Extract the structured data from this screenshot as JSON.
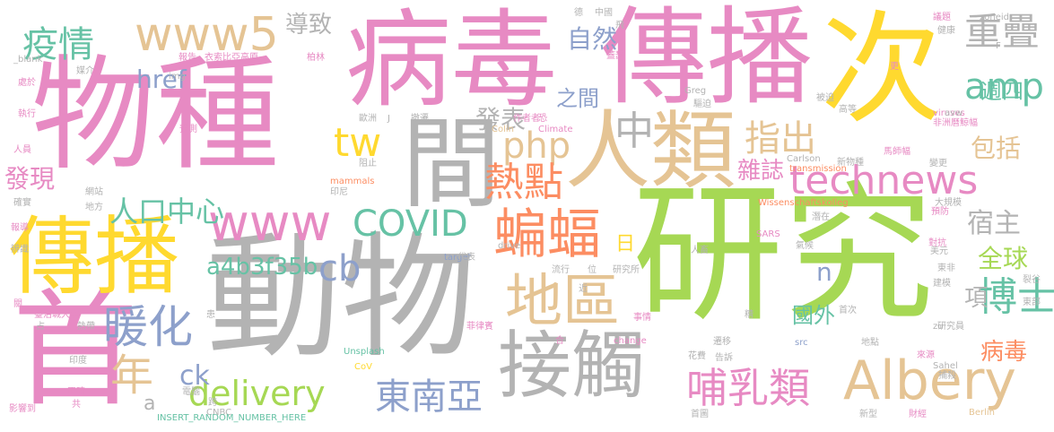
{
  "words": [
    {
      "text": "研究",
      "color": "#a6d854"
    },
    {
      "text": "動物",
      "color": "#b3b3b3"
    },
    {
      "text": "物種",
      "color": "#e78ac3"
    },
    {
      "text": "病毒",
      "color": "#e78ac3"
    },
    {
      "text": "傳播",
      "color": "#e78ac3"
    },
    {
      "text": "次",
      "color": "#ffd92f"
    },
    {
      "text": "人類",
      "color": "#e5c494"
    },
    {
      "text": "首",
      "color": "#e78ac3"
    },
    {
      "text": "傳播",
      "color": "#ffd92f"
    },
    {
      "text": "間",
      "color": "#b3b3b3"
    },
    {
      "text": "接觸",
      "color": "#b3b3b3"
    },
    {
      "text": "Albery",
      "color": "#e5c494"
    },
    {
      "text": "technews",
      "color": "#e78ac3"
    },
    {
      "text": "www",
      "color": "#e78ac3"
    },
    {
      "text": "www5",
      "color": "#e5c494"
    },
    {
      "text": "蝙蝠",
      "color": "#fc8d62"
    },
    {
      "text": "地區",
      "color": "#e5c494"
    },
    {
      "text": "COVID",
      "color": "#66c2a5"
    },
    {
      "text": "東南亞",
      "color": "#8da0cb"
    },
    {
      "text": "哺乳類",
      "color": "#e78ac3"
    },
    {
      "text": "delivery",
      "color": "#a6d854"
    },
    {
      "text": "暖化",
      "color": "#8da0cb"
    },
    {
      "text": "疫情",
      "color": "#66c2a5"
    },
    {
      "text": "tw",
      "color": "#ffd92f"
    },
    {
      "text": "php",
      "color": "#e5c494"
    },
    {
      "text": "amp",
      "color": "#66c2a5"
    },
    {
      "text": "重疊",
      "color": "#b3b3b3"
    },
    {
      "text": "指出",
      "color": "#e5c494"
    },
    {
      "text": "熱點",
      "color": "#fc8d62"
    },
    {
      "text": "中",
      "color": "#b3b3b3"
    },
    {
      "text": "cb",
      "color": "#8da0cb"
    },
    {
      "text": "人口中心",
      "color": "#66c2a5"
    },
    {
      "text": "博士",
      "color": "#66c2a5"
    },
    {
      "text": "年",
      "color": "#e5c494"
    },
    {
      "text": "a4b3f35b",
      "color": "#66c2a5"
    },
    {
      "text": "全球",
      "color": "#a6d854"
    },
    {
      "text": "ck",
      "color": "#8da0cb"
    },
    {
      "text": "自然",
      "color": "#8da0cb"
    },
    {
      "text": "導致",
      "color": "#b3b3b3"
    },
    {
      "text": "href",
      "color": "#8da0cb"
    },
    {
      "text": "發表",
      "color": "#b3b3b3"
    },
    {
      "text": "之間",
      "color": "#8da0cb"
    },
    {
      "text": "發現",
      "color": "#e78ac3"
    },
    {
      "text": "包括",
      "color": "#e5c494"
    },
    {
      "text": "雜誌",
      "color": "#e78ac3"
    },
    {
      "text": "宿主",
      "color": "#b3b3b3"
    },
    {
      "text": "國外",
      "color": "#66c2a5"
    },
    {
      "text": "病毒",
      "color": "#fc8d62"
    },
    {
      "text": "週四",
      "color": "#66c2a5"
    },
    {
      "text": "日",
      "color": "#ffd92f"
    },
    {
      "text": "n",
      "color": "#8da0cb"
    },
    {
      "text": "項",
      "color": "#b3b3b3"
    },
    {
      "text": "a",
      "color": "#b3b3b3"
    },
    {
      "text": "臺治城大學",
      "color": "#e78ac3"
    },
    {
      "text": "熱帶",
      "color": "#b3b3b3"
    },
    {
      "text": "印度",
      "color": "#b3b3b3"
    },
    {
      "text": "CNBC",
      "color": "#b3b3b3"
    },
    {
      "text": "INSERT_RANDOM_NUMBER_HERE",
      "color": "#66c2a5"
    },
    {
      "text": "Unsplash",
      "color": "#66c2a5"
    },
    {
      "text": "CoV",
      "color": "#ffd92f"
    },
    {
      "text": "菲律賓",
      "color": "#e78ac3"
    },
    {
      "text": "change",
      "color": "#e78ac3"
    },
    {
      "text": "SARS",
      "color": "#e78ac3"
    },
    {
      "text": "Wissenschaftskolleg",
      "color": "#fc8d62"
    },
    {
      "text": "Carlson",
      "color": "#b3b3b3"
    },
    {
      "text": "transmission",
      "color": "#fc8d62"
    },
    {
      "text": "Greg",
      "color": "#b3b3b3"
    },
    {
      "text": "viruses",
      "color": "#e78ac3"
    },
    {
      "text": "avw",
      "color": "#b3b3b3"
    },
    {
      "text": "Berlin",
      "color": "#e5c494"
    },
    {
      "text": "Sahel",
      "color": "#b3b3b3"
    },
    {
      "text": "mammals",
      "color": "#fc8d62"
    },
    {
      "text": "Colin",
      "color": "#e5c494"
    },
    {
      "text": "Climate",
      "color": "#e78ac3"
    },
    {
      "text": "drive",
      "color": "#b3b3b3"
    },
    {
      "text": "target",
      "color": "#8da0cb"
    },
    {
      "text": "src",
      "color": "#8da0cb"
    },
    {
      "text": "zu",
      "color": "#b3b3b3"
    },
    {
      "text": "zoneid",
      "color": "#b3b3b3"
    },
    {
      "text": "_blank",
      "color": "#b3b3b3"
    },
    {
      "text": "img",
      "color": "#b3b3b3"
    },
    {
      "text": "衣索比亞高原",
      "color": "#e78ac3"
    },
    {
      "text": "報告",
      "color": "#e78ac3"
    },
    {
      "text": "柏林",
      "color": "#e78ac3"
    },
    {
      "text": "媒介",
      "color": "#b3b3b3"
    },
    {
      "text": "處於",
      "color": "#e78ac3"
    },
    {
      "text": "執行",
      "color": "#e78ac3"
    },
    {
      "text": "預測",
      "color": "#e78ac3"
    },
    {
      "text": "人員",
      "color": "#e78ac3"
    },
    {
      "text": "網站",
      "color": "#b3b3b3"
    },
    {
      "text": "確實",
      "color": "#b3b3b3"
    },
    {
      "text": "地方",
      "color": "#b3b3b3"
    },
    {
      "text": "報導",
      "color": "#e78ac3"
    },
    {
      "text": "辨識",
      "color": "#b3b3b3"
    },
    {
      "text": "關",
      "color": "#e78ac3"
    },
    {
      "text": "占",
      "color": "#b3b3b3"
    },
    {
      "text": "正確",
      "color": "#e78ac3"
    },
    {
      "text": "共",
      "color": "#e78ac3"
    },
    {
      "text": "影響到",
      "color": "#e78ac3"
    },
    {
      "text": "電腦",
      "color": "#b3b3b3"
    },
    {
      "text": "跨",
      "color": "#b3b3b3"
    },
    {
      "text": "歐洲",
      "color": "#b3b3b3"
    },
    {
      "text": "撤遷",
      "color": "#b3b3b3"
    },
    {
      "text": "作者者",
      "color": "#e78ac3"
    },
    {
      "text": "恐",
      "color": "#e78ac3"
    },
    {
      "text": "阻止",
      "color": "#b3b3b3"
    },
    {
      "text": "印尼",
      "color": "#b3b3b3"
    },
    {
      "text": "代表",
      "color": "#b3b3b3"
    },
    {
      "text": "流行",
      "color": "#b3b3b3"
    },
    {
      "text": "位",
      "color": "#b3b3b3"
    },
    {
      "text": "研究所",
      "color": "#b3b3b3"
    },
    {
      "text": "近",
      "color": "#b3b3b3"
    },
    {
      "text": "事情",
      "color": "#e78ac3"
    },
    {
      "text": "合",
      "color": "#e78ac3"
    },
    {
      "text": "花費",
      "color": "#b3b3b3"
    },
    {
      "text": "告訴",
      "color": "#b3b3b3"
    },
    {
      "text": "來源",
      "color": "#e78ac3"
    },
    {
      "text": "捕殺",
      "color": "#b3b3b3"
    },
    {
      "text": "首圖",
      "color": "#b3b3b3"
    },
    {
      "text": "新型",
      "color": "#b3b3b3"
    },
    {
      "text": "財經",
      "color": "#e78ac3"
    },
    {
      "text": "首次",
      "color": "#b3b3b3"
    },
    {
      "text": "地點",
      "color": "#b3b3b3"
    },
    {
      "text": "研究員",
      "color": "#b3b3b3"
    },
    {
      "text": "遷移",
      "color": "#b3b3b3"
    },
    {
      "text": "糟",
      "color": "#b3b3b3"
    },
    {
      "text": "患",
      "color": "#b3b3b3"
    },
    {
      "text": "東部",
      "color": "#b3b3b3"
    },
    {
      "text": "裂谷",
      "color": "#b3b3b3"
    },
    {
      "text": "建模",
      "color": "#b3b3b3"
    },
    {
      "text": "東非",
      "color": "#b3b3b3"
    },
    {
      "text": "對抗",
      "color": "#e78ac3"
    },
    {
      "text": "美元",
      "color": "#b3b3b3"
    },
    {
      "text": "氣候",
      "color": "#b3b3b3"
    },
    {
      "text": "人畜",
      "color": "#b3b3b3"
    },
    {
      "text": "潛在",
      "color": "#b3b3b3"
    },
    {
      "text": "預防",
      "color": "#e78ac3"
    },
    {
      "text": "大規模",
      "color": "#b3b3b3"
    },
    {
      "text": "變更",
      "color": "#b3b3b3"
    },
    {
      "text": "新物種",
      "color": "#b3b3b3"
    },
    {
      "text": "馬師幅",
      "color": "#e78ac3"
    },
    {
      "text": "非洲曆鯨幅",
      "color": "#e78ac3"
    },
    {
      "text": "高等",
      "color": "#b3b3b3"
    },
    {
      "text": "被迫",
      "color": "#b3b3b3"
    },
    {
      "text": "驅迫",
      "color": "#b3b3b3"
    },
    {
      "text": "更",
      "color": "#e78ac3"
    },
    {
      "text": "健康",
      "color": "#b3b3b3"
    },
    {
      "text": "議題",
      "color": "#e78ac3"
    },
    {
      "text": "德",
      "color": "#b3b3b3"
    },
    {
      "text": "中國",
      "color": "#b3b3b3"
    },
    {
      "text": "飛",
      "color": "#b3b3b3"
    },
    {
      "text": "蓋瑟",
      "color": "#e78ac3"
    },
    {
      "text": "J",
      "color": "#b3b3b3"
    },
    {
      "text": "F",
      "color": "#b3b3b3"
    }
  ]
}
